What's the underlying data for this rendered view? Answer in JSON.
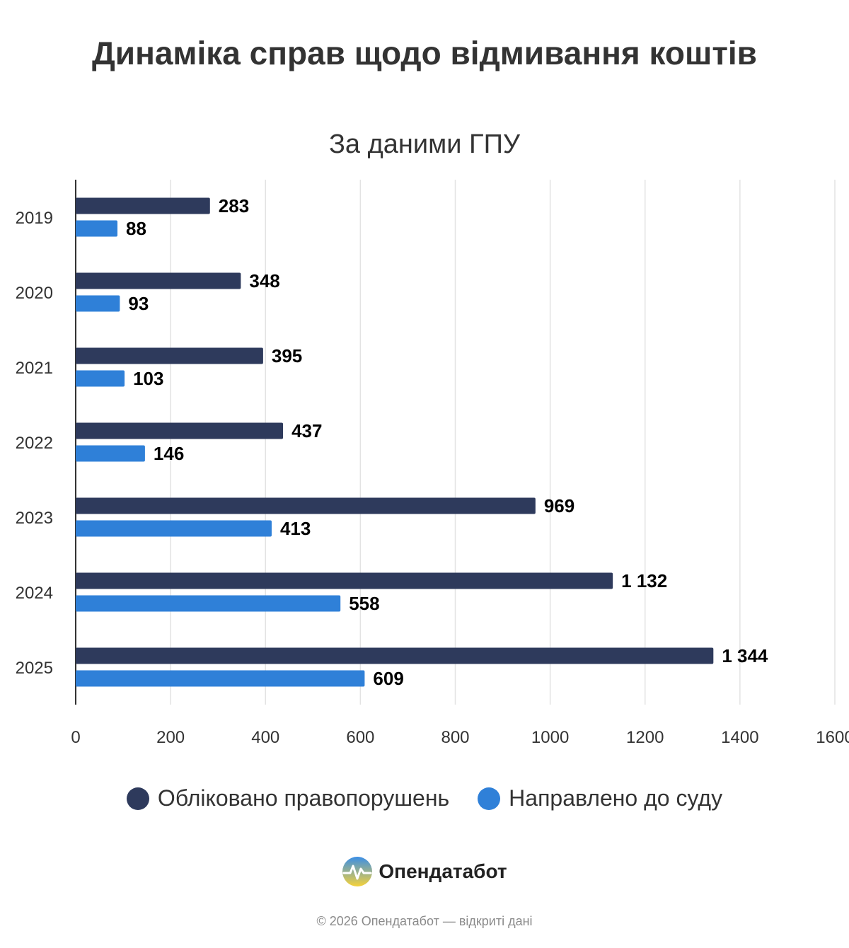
{
  "header": {
    "title": "Динаміка справ щодо відмивання коштів",
    "subtitle": "За даними ГПУ"
  },
  "chart_data": {
    "type": "bar",
    "orientation": "horizontal",
    "title": "Динаміка справ щодо відмивання коштів",
    "subtitle": "За даними ГПУ",
    "categories": [
      "2019",
      "2020",
      "2021",
      "2022",
      "2023",
      "2024",
      "2025"
    ],
    "series": [
      {
        "name": "Обліковано правопорушень",
        "color": "#2e3a5c",
        "values": [
          283,
          348,
          395,
          437,
          969,
          1132,
          1344
        ],
        "labels": [
          "283",
          "348",
          "395",
          "437",
          "969",
          "1 132",
          "1 344"
        ]
      },
      {
        "name": "Направлено до суду",
        "color": "#2f80d8",
        "values": [
          88,
          93,
          103,
          146,
          413,
          558,
          609
        ],
        "labels": [
          "88",
          "93",
          "103",
          "146",
          "413",
          "558",
          "609"
        ]
      }
    ],
    "xlim": [
      0,
      1600
    ],
    "xticks": [
      "0",
      "200",
      "400",
      "600",
      "800",
      "1000",
      "1200",
      "1400",
      "1600"
    ],
    "grid": true,
    "legend": "bottom-center"
  },
  "brand": {
    "name": "Опендатабот"
  },
  "footer": {
    "text": "© 2026 Опендатабот — відкриті дані"
  }
}
